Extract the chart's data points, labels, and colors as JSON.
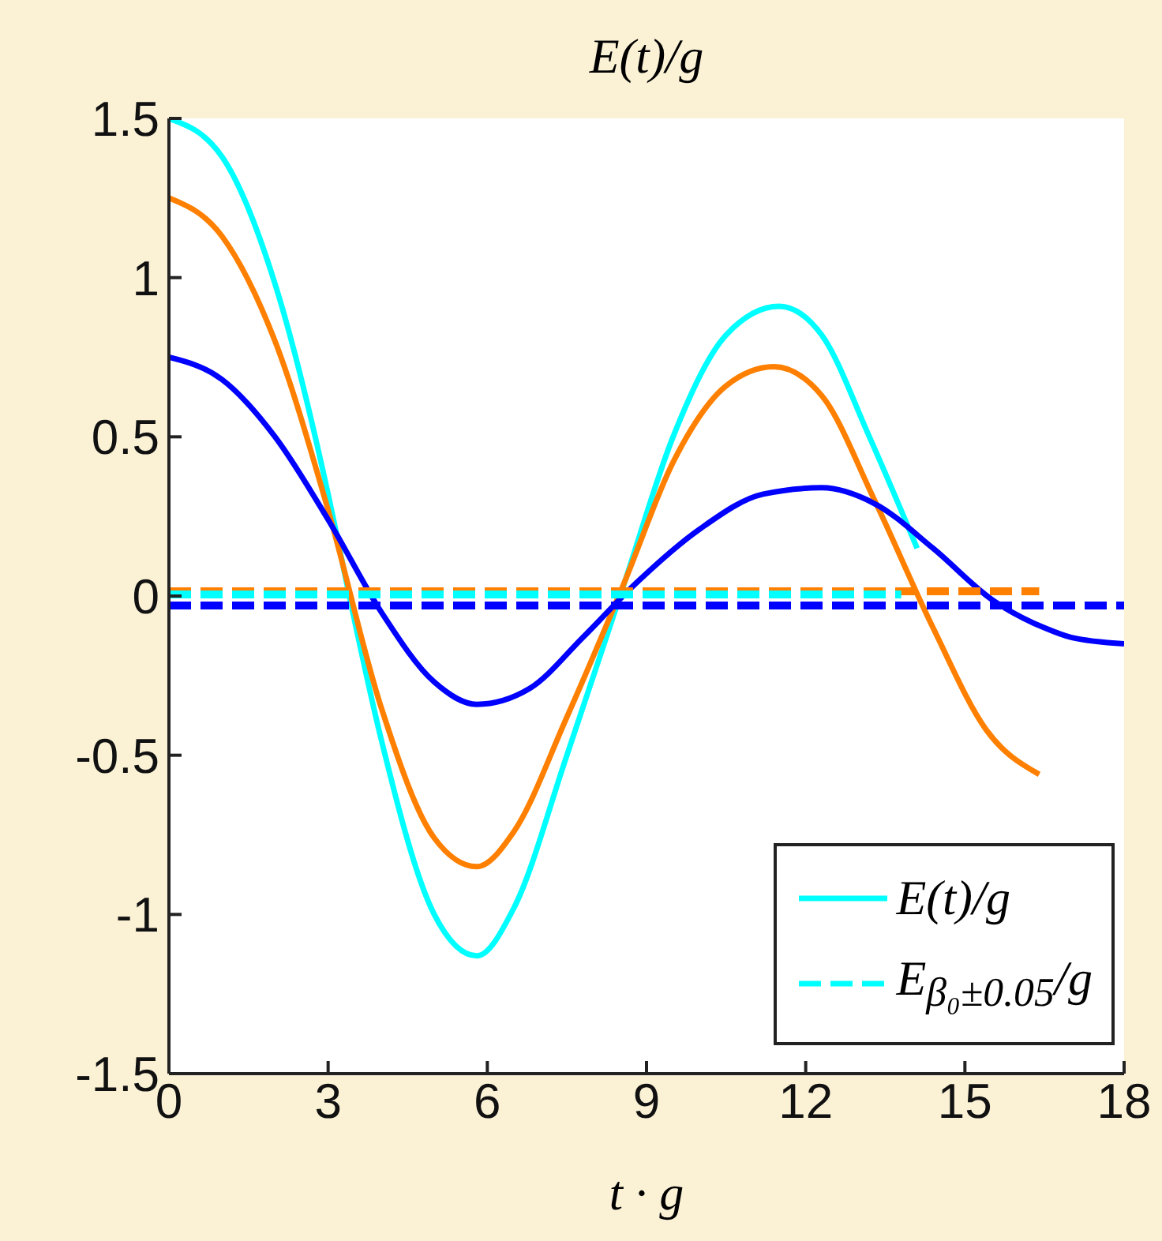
{
  "chart_data": {
    "type": "line",
    "title": "E(t)/g",
    "xlabel": "t · g",
    "xlim": [
      0,
      18
    ],
    "xticks": [
      0,
      3,
      6,
      9,
      12,
      15,
      18
    ],
    "ylim": [
      -1.5,
      1.5
    ],
    "yticks": [
      1.5,
      1,
      0.5,
      0,
      -0.5,
      -1,
      -1.5
    ],
    "grid": false,
    "legend": "bottom right",
    "line_style": "solid",
    "marker": "none",
    "series": [
      {
        "name": "E(t)/g",
        "color": "#00ffff",
        "x": [
          0,
          1,
          2,
          3,
          3.4,
          4,
          5,
          5.8,
          6.5,
          7.5,
          8.6,
          9.5,
          10.5,
          11.5,
          12.3,
          13.2,
          14.1
        ],
        "values": [
          1.5,
          1.38,
          0.98,
          0.32,
          0.0,
          -0.45,
          -1.0,
          -1.13,
          -0.98,
          -0.5,
          0.05,
          0.5,
          0.82,
          0.91,
          0.82,
          0.5,
          0.15
        ]
      },
      {
        "color": "#ff8000",
        "x": [
          0,
          1,
          2,
          3,
          4,
          5,
          5.8,
          6.5,
          7.5,
          8.6,
          9.5,
          10.5,
          11.4,
          12.3,
          13.3,
          14.4,
          15.4,
          16.4
        ],
        "values": [
          1.25,
          1.13,
          0.8,
          0.27,
          -0.35,
          -0.76,
          -0.85,
          -0.74,
          -0.38,
          0.05,
          0.42,
          0.66,
          0.72,
          0.63,
          0.3,
          -0.1,
          -0.42,
          -0.56
        ]
      },
      {
        "color": "#0000ff",
        "x": [
          0,
          1,
          2,
          3,
          4,
          5,
          5.8,
          6.8,
          7.8,
          8.8,
          10,
          11.2,
          12.3,
          13.3,
          14.4,
          15.5,
          16.5,
          17,
          18
        ],
        "values": [
          0.75,
          0.68,
          0.5,
          0.24,
          -0.05,
          -0.27,
          -0.34,
          -0.29,
          -0.13,
          0.04,
          0.21,
          0.32,
          0.34,
          0.29,
          0.15,
          -0.01,
          -0.1,
          -0.13,
          -0.15
        ]
      },
      {
        "color": "#ff8000",
        "line_style": "dashed",
        "x": [
          0,
          16.4
        ],
        "values": [
          0.015,
          0.015
        ]
      },
      {
        "name": "E$_{β₀±0.05}$/g",
        "color": "#00ffff",
        "line_style": "dashed",
        "x": [
          0,
          13.8
        ],
        "values": [
          0.005,
          0.005
        ]
      },
      {
        "color": "#0000ff",
        "line_style": "dashed",
        "x": [
          0,
          18
        ],
        "values": [
          -0.03,
          -0.03
        ]
      }
    ]
  }
}
